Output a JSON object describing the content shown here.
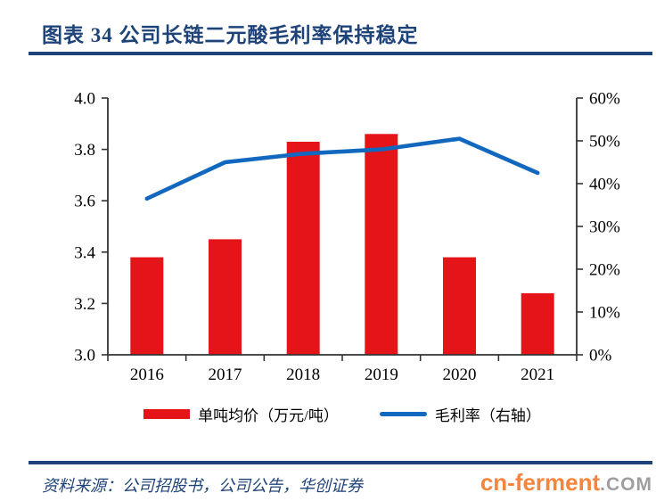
{
  "header": {
    "title": "图表 34  公司长链二元酸毛利率保持稳定"
  },
  "chart_data": {
    "type": "combo-bar-line",
    "categories": [
      "2016",
      "2017",
      "2018",
      "2019",
      "2020",
      "2021"
    ],
    "series": [
      {
        "name": "单吨均价（万元/吨）",
        "type": "bar",
        "axis": "left",
        "color": "#e41419",
        "values": [
          3.38,
          3.45,
          3.83,
          3.86,
          3.38,
          3.24
        ]
      },
      {
        "name": "毛利率（右轴）",
        "type": "line",
        "axis": "right",
        "color": "#1268be",
        "values": [
          36.5,
          45,
          47,
          48,
          50.5,
          42.5
        ]
      }
    ],
    "left_axis": {
      "min": 3.0,
      "max": 4.0,
      "tick_step": 0.2,
      "tick_labels": [
        "3.0",
        "3.2",
        "3.4",
        "3.6",
        "3.8",
        "4.0"
      ]
    },
    "right_axis": {
      "min": 0,
      "max": 60,
      "tick_step": 10,
      "tick_labels": [
        "0%",
        "10%",
        "20%",
        "30%",
        "40%",
        "50%",
        "60%"
      ]
    },
    "grid": false,
    "legend_position": "bottom"
  },
  "legend": {
    "bar_label": "单吨均价（万元/吨）",
    "line_label": "毛利率（右轴）"
  },
  "footer": {
    "source": "资料来源：公司招股书，公司公告，华创证券",
    "watermark_main": "cn-ferment",
    "watermark_suffix": ".COM"
  },
  "colors": {
    "accent_navy": "#1e4379",
    "bar_red": "#e41419",
    "line_blue": "#1268be",
    "axis_black": "#333333",
    "watermark_orange": "#f5853b",
    "watermark_gray": "#9e9e9e"
  }
}
